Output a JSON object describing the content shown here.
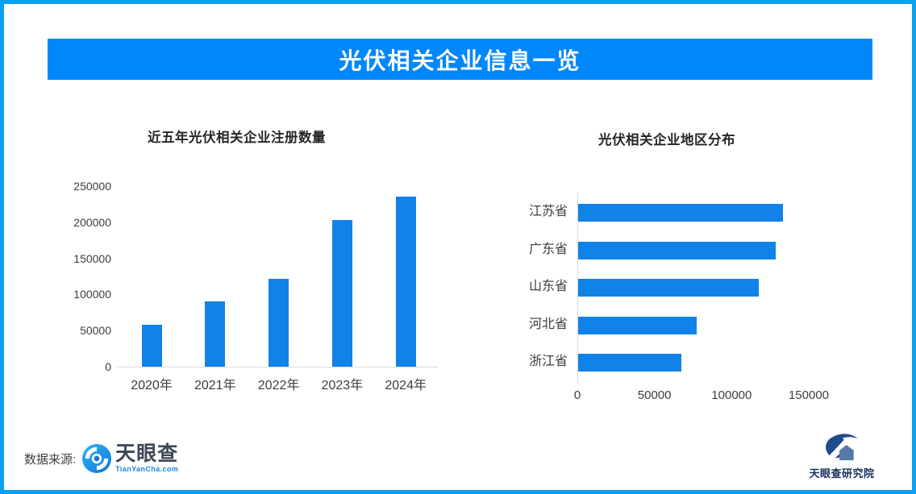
{
  "colors": {
    "page_border": "#0AA1F2",
    "banner_bg": "#0087FB",
    "banner_text": "#FFFFFF",
    "bar_blue": "#1182E8",
    "axis_line": "#D9D9D9",
    "tianyancha_blue": "#1488E8",
    "research_navy": "#16305C"
  },
  "header": {
    "title": "光伏相关企业信息一览"
  },
  "chart_data": [
    {
      "type": "bar",
      "orientation": "vertical",
      "title": "近五年光伏相关企业注册数量",
      "categories": [
        "2020年",
        "2021年",
        "2022年",
        "2023年",
        "2024年"
      ],
      "values": [
        58000,
        90000,
        122000,
        203000,
        235000
      ],
      "xlabel": "",
      "ylabel": "",
      "ylim": [
        0,
        250000
      ],
      "yticks": [
        0,
        50000,
        100000,
        150000,
        200000,
        250000
      ],
      "grid": false,
      "legend": "none",
      "bar_color": "#1182E8"
    },
    {
      "type": "bar",
      "orientation": "horizontal",
      "title": "光伏相关企业地区分布",
      "categories": [
        "江苏省",
        "广东省",
        "山东省",
        "河北省",
        "浙江省"
      ],
      "values": [
        133000,
        128000,
        117000,
        77000,
        67000
      ],
      "xlabel": "",
      "ylabel": "",
      "xlim": [
        0,
        150000
      ],
      "xticks": [
        0,
        50000,
        100000,
        150000
      ],
      "grid": false,
      "legend": "none",
      "bar_color": "#1182E8"
    }
  ],
  "footer": {
    "source_label": "数据来源:",
    "tianyancha": {
      "icon": "eye-swirl-icon",
      "name": "天眼查",
      "url_text": "TianYanCha.com"
    },
    "research_institute": {
      "icon": "mountain-swoosh-icon",
      "name": "天眼查研究院"
    }
  }
}
